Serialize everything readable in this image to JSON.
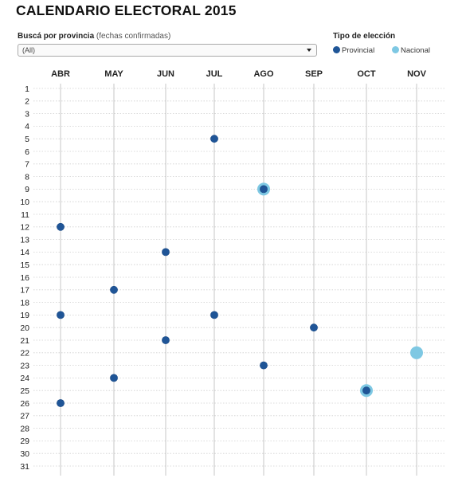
{
  "title": "CALENDARIO ELECTORAL 2015",
  "filter": {
    "label": "Buscá por provincia",
    "note": "(fechas confirmadas)",
    "selected": "(All)"
  },
  "legend": {
    "title": "Tipo de elección",
    "items": [
      {
        "label": "Provincial",
        "color": "#1f5597"
      },
      {
        "label": "Nacional",
        "color": "#7ec8e3"
      }
    ]
  },
  "chart_data": {
    "type": "scatter",
    "title": "",
    "xlabel": "",
    "ylabel": "",
    "categories": [
      "ABR",
      "MAY",
      "JUN",
      "JUL",
      "AGO",
      "SEP",
      "OCT",
      "NOV"
    ],
    "days": [
      "1",
      "2",
      "3",
      "4",
      "5",
      "6",
      "7",
      "8",
      "9",
      "10",
      "11",
      "12",
      "13",
      "14",
      "15",
      "16",
      "17",
      "18",
      "19",
      "20",
      "21",
      "22",
      "23",
      "24",
      "25",
      "26",
      "27",
      "28",
      "29",
      "30",
      "31"
    ],
    "grid": true,
    "series": [
      {
        "name": "Provincial",
        "color": "#1f5597",
        "points": [
          {
            "month": "ABR",
            "day": 12
          },
          {
            "month": "ABR",
            "day": 19
          },
          {
            "month": "ABR",
            "day": 26
          },
          {
            "month": "MAY",
            "day": 17
          },
          {
            "month": "MAY",
            "day": 24
          },
          {
            "month": "JUN",
            "day": 14
          },
          {
            "month": "JUN",
            "day": 21
          },
          {
            "month": "JUL",
            "day": 5
          },
          {
            "month": "JUL",
            "day": 19
          },
          {
            "month": "AGO",
            "day": 9
          },
          {
            "month": "AGO",
            "day": 23
          },
          {
            "month": "SEP",
            "day": 20
          },
          {
            "month": "OCT",
            "day": 25
          }
        ]
      },
      {
        "name": "Nacional",
        "color": "#7ec8e3",
        "points": [
          {
            "month": "AGO",
            "day": 9
          },
          {
            "month": "OCT",
            "day": 25
          },
          {
            "month": "NOV",
            "day": 22
          }
        ]
      }
    ]
  }
}
